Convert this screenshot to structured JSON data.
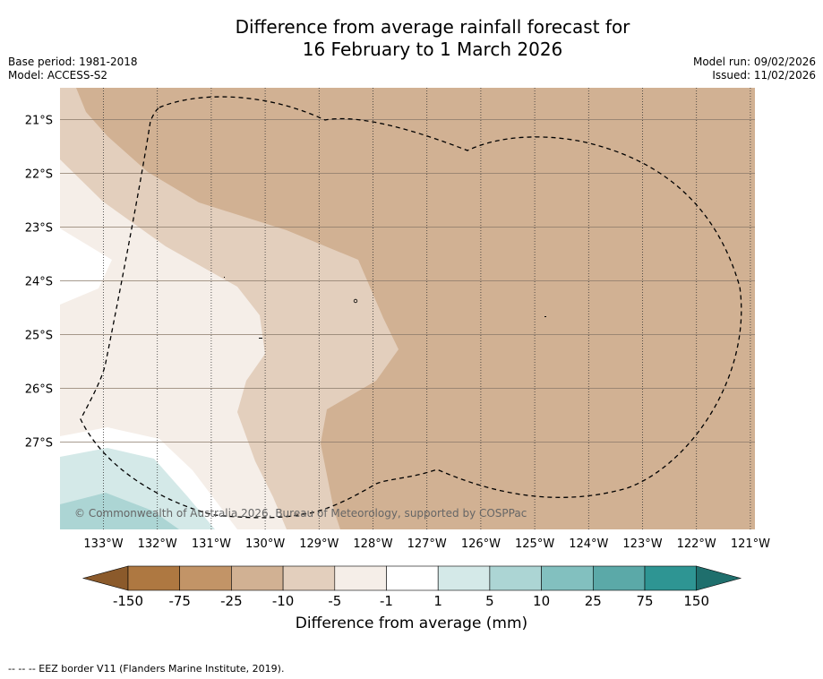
{
  "title": {
    "line1": "Difference from average rainfall forecast for",
    "line2": "16 February to 1 March 2026"
  },
  "meta_left": {
    "base_period": "Base period: 1981-2018",
    "model": "Model: ACCESS-S2"
  },
  "meta_right": {
    "model_run": "Model run: 09/02/2026",
    "issued": "Issued: 11/02/2026"
  },
  "map": {
    "lon_labels": [
      "133°W",
      "132°W",
      "131°W",
      "130°W",
      "129°W",
      "128°W",
      "127°W",
      "126°W",
      "125°W",
      "124°W",
      "123°W",
      "122°W",
      "121°W"
    ],
    "lat_labels": [
      "21°S",
      "22°S",
      "23°S",
      "24°S",
      "25°S",
      "26°S",
      "27°S"
    ],
    "copyright": "© Commonwealth of Australia 2026, Bureau of Meteorology, supported by COSPPac",
    "background_color": "#d1b193"
  },
  "colorbar": {
    "colors": [
      "#ae7841",
      "#c29467",
      "#d1b193",
      "#e3cfbd",
      "#f5eee8",
      "#ffffff",
      "#d4e9e8",
      "#acd5d4",
      "#82c0bf",
      "#5ba9a8",
      "#2e9593"
    ],
    "tick_labels": [
      "-150",
      "-75",
      "-25",
      "-10",
      "-5",
      "-1",
      "1",
      "5",
      "10",
      "25",
      "75",
      "150"
    ],
    "low_extend_color": "#8b5a2b",
    "high_extend_color": "#1f6f6d",
    "label": "Difference from average (mm)"
  },
  "footer": "--  --  -- EEZ border V11 (Flanders Marine Institute, 2019)."
}
